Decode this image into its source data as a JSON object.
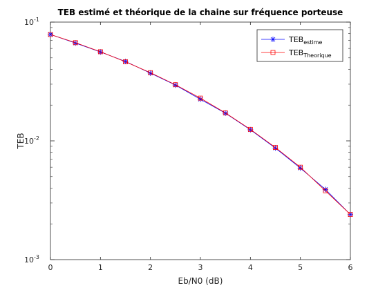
{
  "chart_data": {
    "type": "line",
    "title": "TEB estimé et théorique de la chaine sur fréquence porteuse",
    "xlabel": "Eb/N0 (dB)",
    "ylabel": "TEB",
    "x_ticks": [
      "0",
      "1",
      "2",
      "3",
      "4",
      "5",
      "6"
    ],
    "y_ticks": [
      {
        "base": "10",
        "exp": "-3",
        "value": 0.001
      },
      {
        "base": "10",
        "exp": "-2",
        "value": 0.01
      },
      {
        "base": "10",
        "exp": "-1",
        "value": 0.1
      }
    ],
    "xlim": [
      0,
      6
    ],
    "ylim": [
      0.001,
      0.1
    ],
    "y_scale": "log",
    "grid": false,
    "legend_position": "top-right",
    "x": [
      0,
      0.5,
      1,
      1.5,
      2,
      2.5,
      3,
      3.5,
      4,
      4.5,
      5,
      5.5,
      6
    ],
    "series": [
      {
        "name_main": "TEB",
        "name_sub": "estime",
        "color": "#0000ff",
        "marker": "star",
        "values": [
          0.0787,
          0.0666,
          0.056,
          0.0466,
          0.0372,
          0.0295,
          0.0224,
          0.0171,
          0.0124,
          0.0087,
          0.0059,
          0.0039,
          0.0024
        ]
      },
      {
        "name_main": "TEB",
        "name_sub": "Theorique",
        "color": "#ff0000",
        "marker": "square",
        "values": [
          0.0786,
          0.0671,
          0.0563,
          0.0463,
          0.0375,
          0.0297,
          0.0229,
          0.0172,
          0.0125,
          0.0088,
          0.006,
          0.0038,
          0.0024
        ]
      }
    ]
  }
}
